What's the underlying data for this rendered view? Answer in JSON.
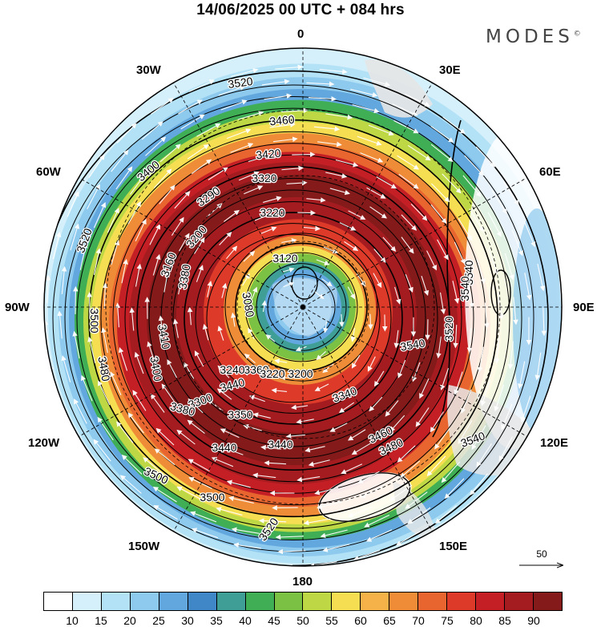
{
  "header": {
    "title": "14/06/2025  00 UTC  + 084 hrs",
    "brand": "MODES"
  },
  "map": {
    "projection": "south-polar-stereographic",
    "longitude_labels": [
      {
        "id": "0",
        "text": "0"
      },
      {
        "id": "30E",
        "text": "30E"
      },
      {
        "id": "60E",
        "text": "60E"
      },
      {
        "id": "90E",
        "text": "90E"
      },
      {
        "id": "120E",
        "text": "120E"
      },
      {
        "id": "150E",
        "text": "150E"
      },
      {
        "id": "180",
        "text": "180"
      },
      {
        "id": "150W",
        "text": "150W"
      },
      {
        "id": "120W",
        "text": "120W"
      },
      {
        "id": "90W",
        "text": "90W"
      },
      {
        "id": "60W",
        "text": "60W"
      },
      {
        "id": "30W",
        "text": "30W"
      }
    ],
    "contour_labels": [
      "3520",
      "3460",
      "3420",
      "3400",
      "3320",
      "3290",
      "3220",
      "3200",
      "3120",
      "3080",
      "3160",
      "3380",
      "3410",
      "3540",
      "3500",
      "3520",
      "3480",
      "3400",
      "3440",
      "3300",
      "3360",
      "3380",
      "3350",
      "3240",
      "3220",
      "3200",
      "3340",
      "3440",
      "3440",
      "3460",
      "3480",
      "3500",
      "3500",
      "3520",
      "3540",
      "3540",
      "3520",
      "3540"
    ],
    "colors": {
      "frame": "#000000",
      "land": "#e6e6e6",
      "contour": "#000000",
      "vectors": "#ffffff"
    }
  },
  "reference_vector": {
    "label": "50"
  },
  "colorbar": {
    "colors": [
      "#ffffff",
      "#d5f0fb",
      "#b3e2f6",
      "#8ec9ee",
      "#62a8de",
      "#3f87c6",
      "#3f9e96",
      "#3fae55",
      "#7bc144",
      "#bdd844",
      "#f5de52",
      "#f4b248",
      "#ef8c37",
      "#e9652f",
      "#dd3a2a",
      "#c41f25",
      "#a51c20",
      "#851a1a"
    ],
    "labels": [
      "10",
      "15",
      "20",
      "25",
      "30",
      "35",
      "40",
      "45",
      "50",
      "55",
      "60",
      "65",
      "70",
      "75",
      "80",
      "85",
      "90"
    ]
  }
}
